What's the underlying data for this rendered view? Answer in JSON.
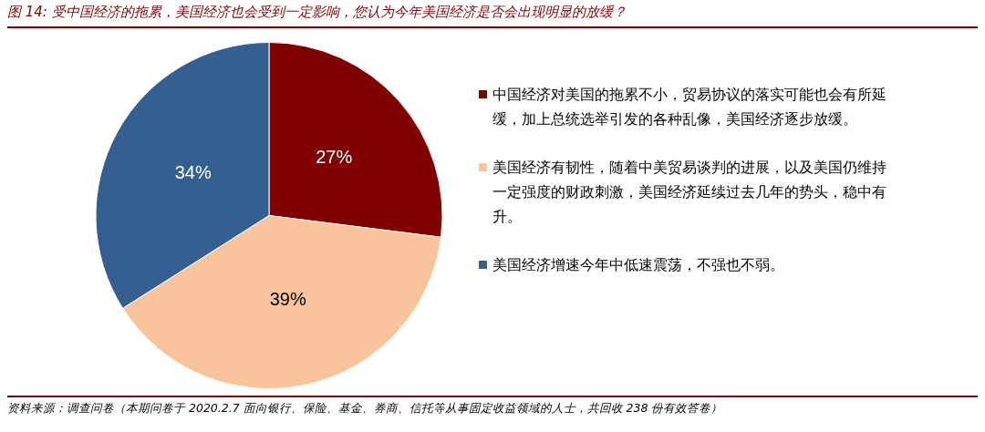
{
  "chart_data": {
    "type": "pie",
    "title": "图 14: 受中国经济的拖累，美国经济也会受到一定影响，您认为今年美国经济是否会出现明显的放缓？",
    "categories": [
      "中国经济对美国的拖累不小，贸易协议的落实可能也会有所延缓，加上总统选举引发的各种乱像，美国经济逐步放缓。",
      "美国经济有韧性，随着中美贸易谈判的进展，以及美国仍维持一定强度的财政刺激，美国经济延续过去几年的势头，稳中有升。",
      "美国经济增速今年中低速震荡，不强也不弱。"
    ],
    "values": [
      27,
      39,
      34
    ],
    "colors": [
      "#7f0000",
      "#f9c49b",
      "#365f91"
    ],
    "value_labels": [
      "27%",
      "39%",
      "34%"
    ],
    "legend": "right",
    "annotations": [
      "资料来源：调查问卷（本期问卷于 2020.2.7 面向银行、保险、基金、券商、信托等从事固定收益领域的人士，共回收 238 份有效答卷）"
    ]
  }
}
